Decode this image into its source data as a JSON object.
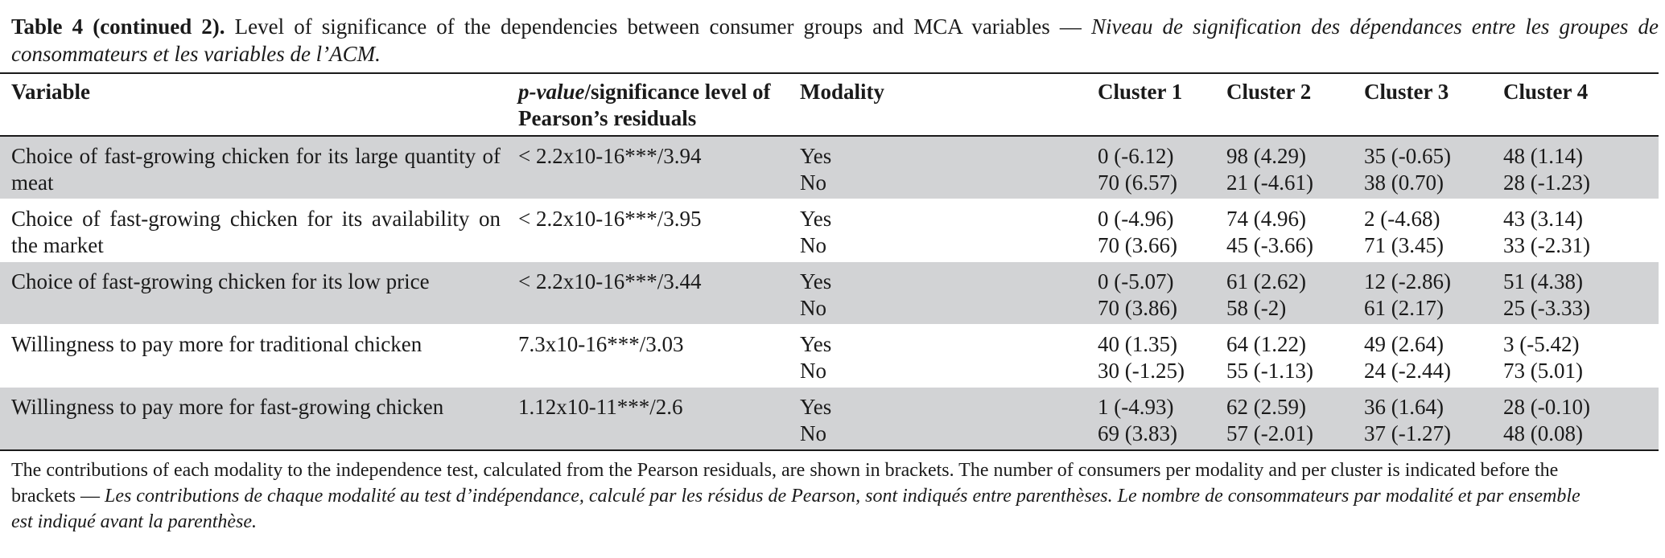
{
  "caption": {
    "label": "Table 4 (continued 2).",
    "text_en": " Level of significance of the dependencies between consumer groups and MCA variables — ",
    "text_fr": "Niveau de signification des dépendances entre les groupes de consommateurs et les variables de l’ACM."
  },
  "header": {
    "variable": "Variable",
    "pvalue_italic": "p-value",
    "pvalue_rest": "/significance level of Pearson’s residuals",
    "modality": "Modality",
    "cluster1": "Cluster 1",
    "cluster2": "Cluster 2",
    "cluster3": "Cluster 3",
    "cluster4": "Cluster 4"
  },
  "rows": [
    {
      "variable": "Choice of fast-growing chicken for its large quantity of meat",
      "pvalue": "< 2.2x10-16***/3.94",
      "modalities": [
        "Yes",
        "No"
      ],
      "cluster1": [
        "0 (-6.12)",
        "70 (6.57)"
      ],
      "cluster2": [
        "98 (4.29)",
        "21 (-4.61)"
      ],
      "cluster3": [
        "35 (-0.65)",
        "38 (0.70)"
      ],
      "cluster4": [
        "48 (1.14)",
        "28 (-1.23)"
      ]
    },
    {
      "variable": "Choice of fast-growing chicken for its availability on the market",
      "pvalue": "< 2.2x10-16***/3.95",
      "modalities": [
        "Yes",
        "No"
      ],
      "cluster1": [
        "0 (-4.96)",
        "70 (3.66)"
      ],
      "cluster2": [
        "74 (4.96)",
        "45 (-3.66)"
      ],
      "cluster3": [
        "2 (-4.68)",
        "71 (3.45)"
      ],
      "cluster4": [
        "43 (3.14)",
        "33 (-2.31)"
      ]
    },
    {
      "variable": "Choice of fast-growing chicken for its low price",
      "pvalue": "< 2.2x10-16***/3.44",
      "modalities": [
        "Yes",
        "No"
      ],
      "cluster1": [
        "0 (-5.07)",
        "70 (3.86)"
      ],
      "cluster2": [
        "61 (2.62)",
        "58 (-2)"
      ],
      "cluster3": [
        "12 (-2.86)",
        "61 (2.17)"
      ],
      "cluster4": [
        "51 (4.38)",
        "25 (-3.33)"
      ]
    },
    {
      "variable": "Willingness to pay more for traditional chicken",
      "pvalue": "7.3x10-16***/3.03",
      "modalities": [
        "Yes",
        "No"
      ],
      "cluster1": [
        "40 (1.35)",
        "30 (-1.25)"
      ],
      "cluster2": [
        "64 (1.22)",
        "55 (-1.13)"
      ],
      "cluster3": [
        "49 (2.64)",
        "24 (-2.44)"
      ],
      "cluster4": [
        "3 (-5.42)",
        "73 (5.01)"
      ]
    },
    {
      "variable": "Willingness to pay more for fast-growing chicken",
      "pvalue": "1.12x10-11***/2.6",
      "modalities": [
        "Yes",
        "No"
      ],
      "cluster1": [
        "1 (-4.93)",
        "69 (3.83)"
      ],
      "cluster2": [
        "62 (2.59)",
        "57 (-2.01)"
      ],
      "cluster3": [
        "36 (1.64)",
        "37 (-1.27)"
      ],
      "cluster4": [
        "28 (-0.10)",
        "48 (0.08)"
      ]
    }
  ],
  "footnote": {
    "text_en": "The contributions of each modality to the independence test, calculated from the Pearson residuals, are shown in brackets. The number of consumers per modality and per cluster is indicated before the brackets — ",
    "text_fr": "Les contributions de chaque modalité au test d’indépendance, calculé par les résidus de Pearson, sont indiqués entre parenthèses. Le nombre de consommateurs par modalité et par ensemble est indiqué  avant la parenthèse."
  },
  "colors": {
    "row_shade": "#d2d3d5",
    "text": "#1a1a1a"
  }
}
